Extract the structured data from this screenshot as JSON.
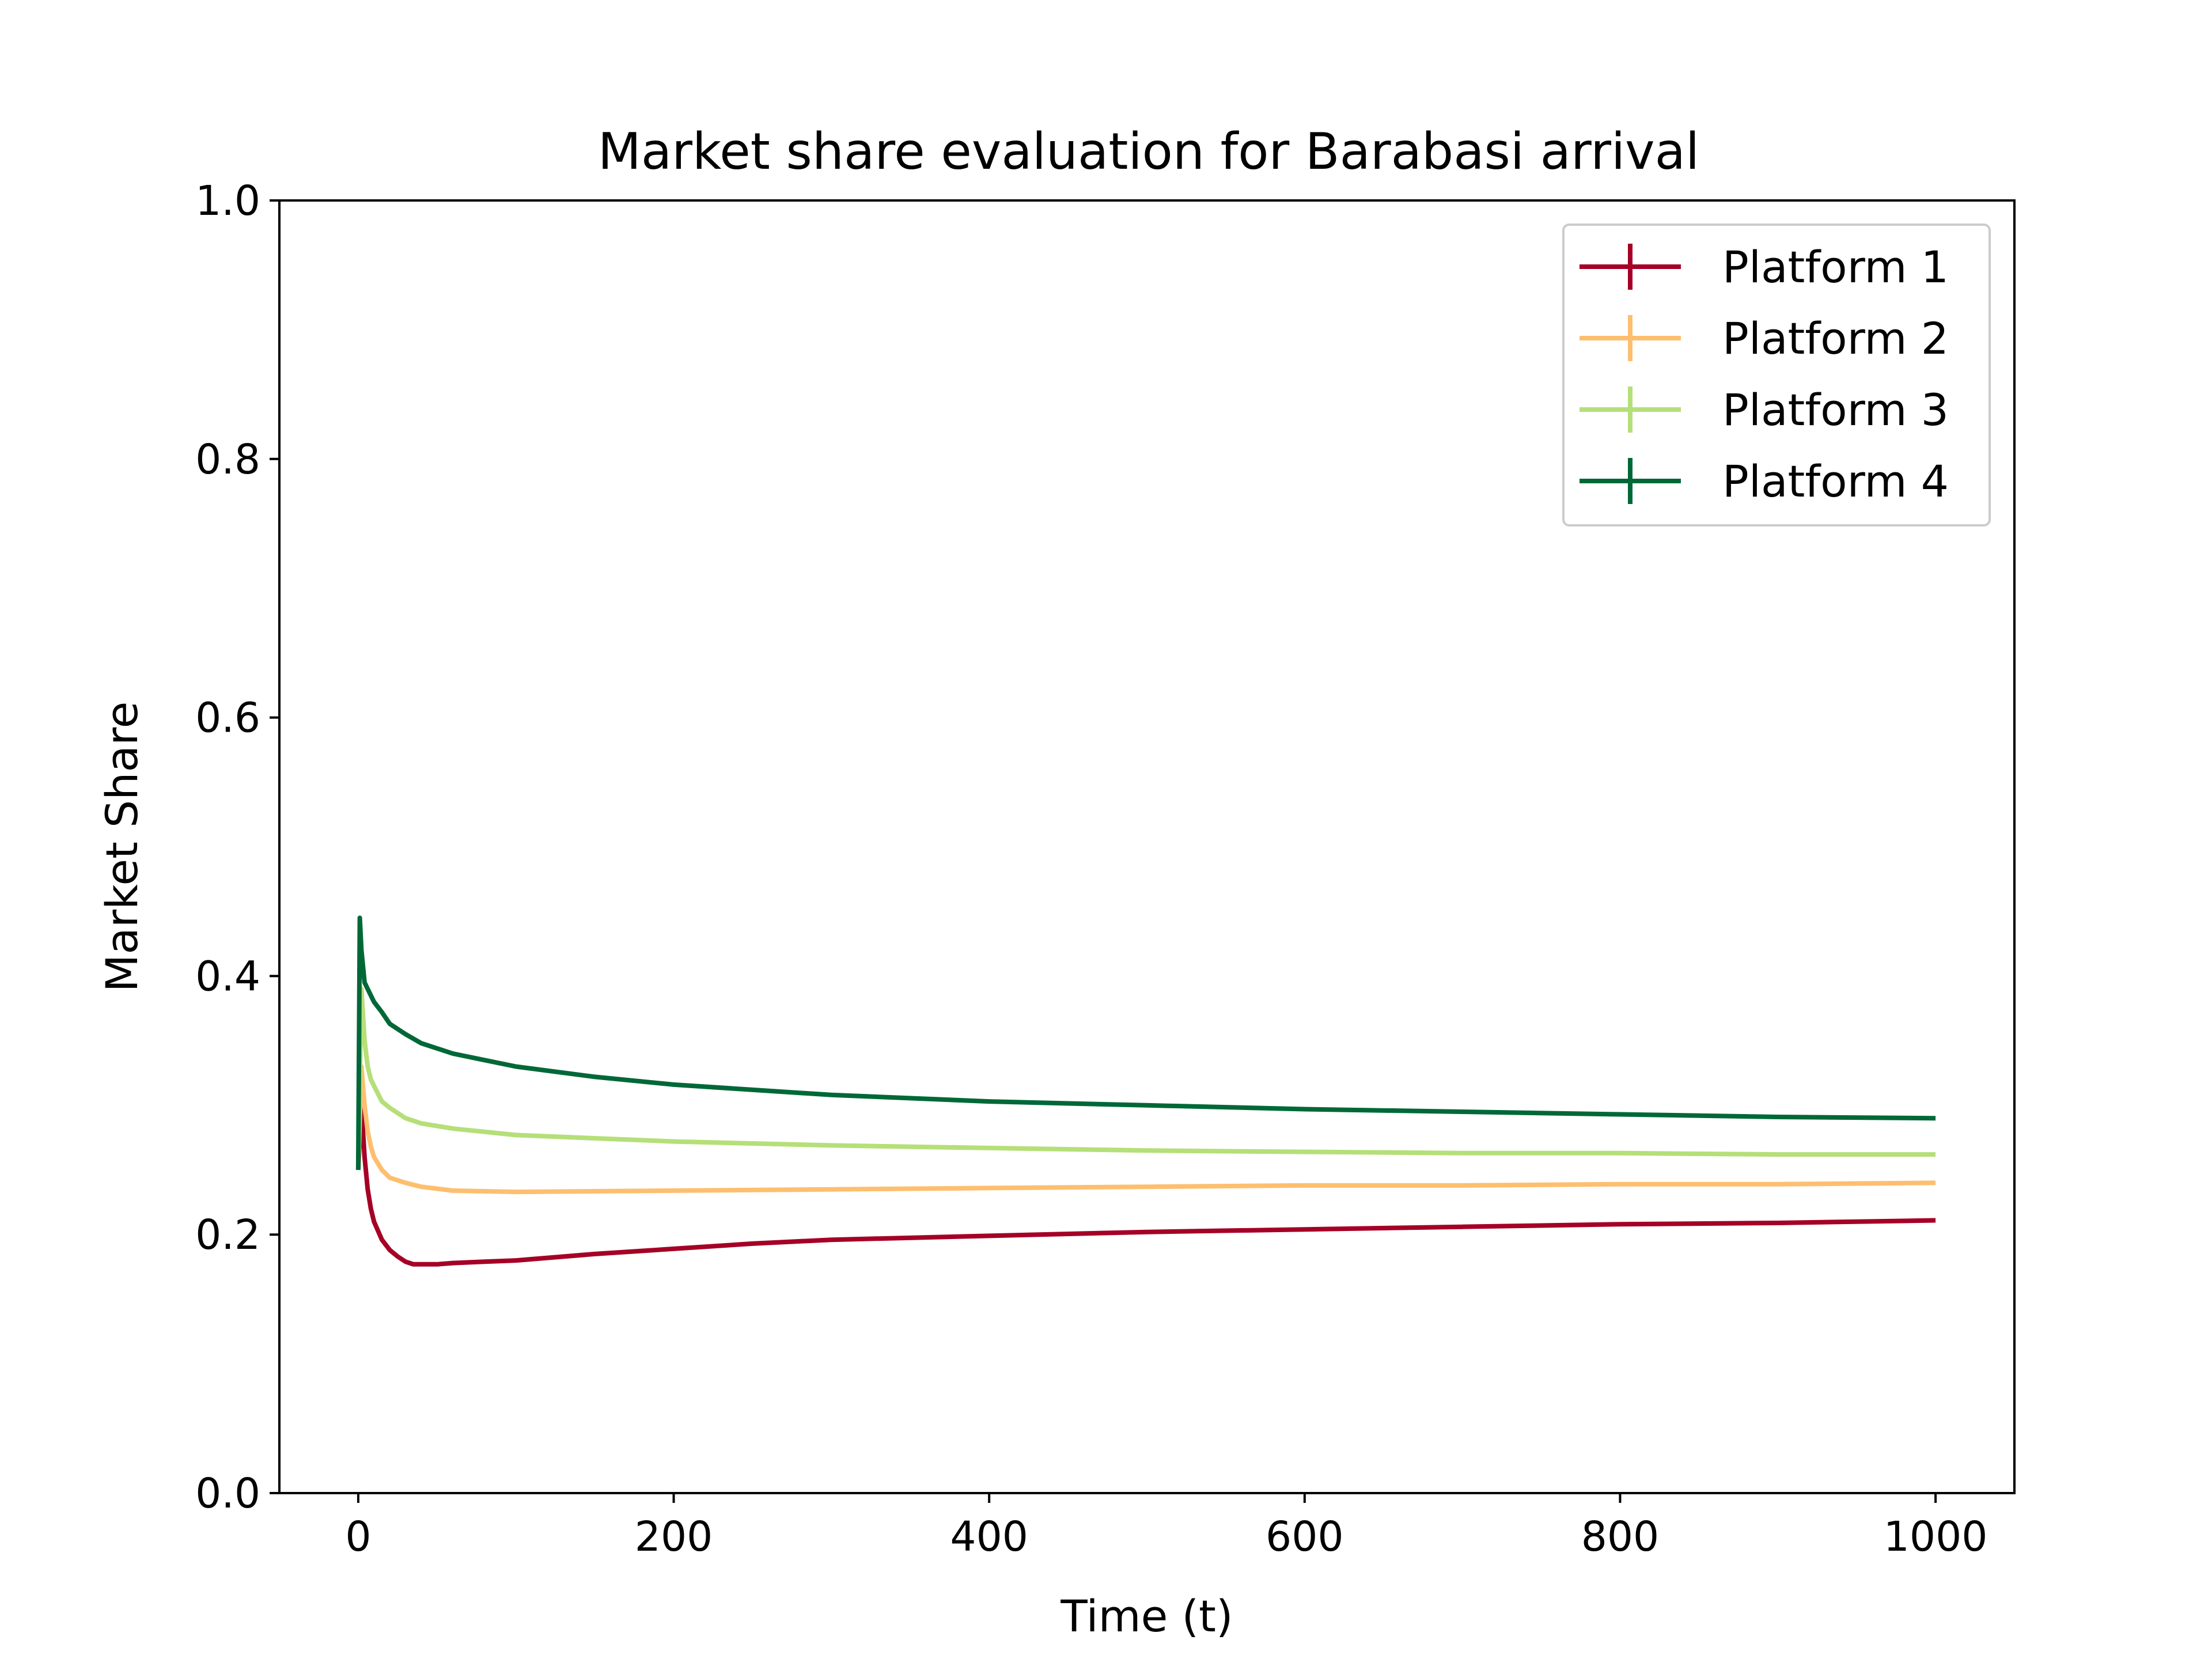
{
  "chart_data": {
    "type": "line",
    "title": "Market share evaluation for Barabasi arrival",
    "xlabel": "Time (t)",
    "ylabel": "Market Share",
    "xlim": [
      -50,
      1050
    ],
    "ylim": [
      0.0,
      1.0
    ],
    "xticks": [
      0,
      200,
      400,
      600,
      800,
      1000
    ],
    "xtick_labels": [
      "0",
      "200",
      "400",
      "600",
      "800",
      "1000"
    ],
    "yticks": [
      0.0,
      0.2,
      0.4,
      0.6,
      0.8,
      1.0
    ],
    "ytick_labels": [
      "0.0",
      "0.2",
      "0.4",
      "0.6",
      "0.8",
      "1.0"
    ],
    "grid": false,
    "legend_position": "top-right",
    "series": [
      {
        "name": "Platform 1",
        "color": "#a50026",
        "x": [
          0,
          2,
          4,
          6,
          8,
          10,
          15,
          20,
          25,
          30,
          35,
          40,
          50,
          60,
          80,
          100,
          150,
          200,
          250,
          300,
          400,
          500,
          600,
          700,
          800,
          900,
          1000
        ],
        "y": [
          0.25,
          0.3,
          0.26,
          0.235,
          0.22,
          0.21,
          0.196,
          0.188,
          0.183,
          0.179,
          0.177,
          0.177,
          0.177,
          0.178,
          0.179,
          0.18,
          0.185,
          0.189,
          0.193,
          0.196,
          0.199,
          0.202,
          0.204,
          0.206,
          0.208,
          0.209,
          0.211
        ]
      },
      {
        "name": "Platform 2",
        "color": "#fdbf6f",
        "x": [
          0,
          2,
          4,
          6,
          8,
          10,
          15,
          20,
          30,
          40,
          60,
          100,
          200,
          300,
          400,
          500,
          600,
          700,
          800,
          900,
          1000
        ],
        "y": [
          0.25,
          0.33,
          0.3,
          0.28,
          0.268,
          0.26,
          0.25,
          0.244,
          0.24,
          0.237,
          0.234,
          0.233,
          0.234,
          0.235,
          0.236,
          0.237,
          0.238,
          0.238,
          0.239,
          0.239,
          0.24
        ]
      },
      {
        "name": "Platform 3",
        "color": "#b5df78",
        "x": [
          0,
          2,
          4,
          6,
          8,
          10,
          15,
          20,
          30,
          40,
          60,
          100,
          200,
          300,
          400,
          500,
          600,
          700,
          800,
          900,
          1000
        ],
        "y": [
          0.25,
          0.39,
          0.35,
          0.33,
          0.32,
          0.315,
          0.303,
          0.298,
          0.29,
          0.286,
          0.282,
          0.277,
          0.272,
          0.269,
          0.267,
          0.265,
          0.264,
          0.263,
          0.263,
          0.262,
          0.262
        ]
      },
      {
        "name": "Platform 4",
        "color": "#006837",
        "x": [
          0,
          1,
          2,
          4,
          6,
          8,
          10,
          15,
          20,
          30,
          40,
          60,
          80,
          100,
          150,
          200,
          250,
          300,
          400,
          500,
          600,
          700,
          800,
          900,
          1000
        ],
        "y": [
          0.25,
          0.445,
          0.42,
          0.395,
          0.39,
          0.385,
          0.38,
          0.372,
          0.363,
          0.355,
          0.348,
          0.34,
          0.335,
          0.33,
          0.322,
          0.316,
          0.312,
          0.308,
          0.303,
          0.3,
          0.297,
          0.295,
          0.293,
          0.291,
          0.29
        ]
      }
    ]
  }
}
